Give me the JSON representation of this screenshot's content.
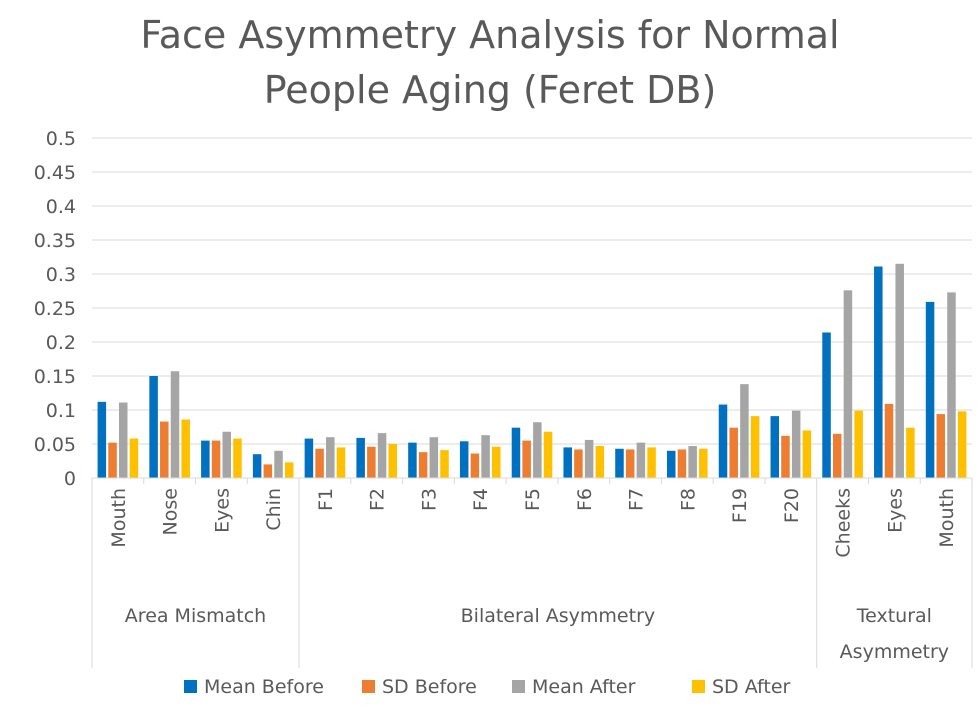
{
  "chart_data": {
    "type": "bar",
    "title_lines": [
      "Face Asymmetry Analysis for Normal",
      "People Aging (Feret DB)"
    ],
    "ylim": [
      0,
      0.5
    ],
    "yticks": [
      "0",
      "0.05",
      "0.1",
      "0.15",
      "0.2",
      "0.25",
      "0.3",
      "0.35",
      "0.4",
      "0.45",
      "0.5"
    ],
    "grid": true,
    "legend_position": "bottom",
    "groups": [
      {
        "label_lines": [
          "Area Mismatch"
        ],
        "categories": [
          "Mouth",
          "Nose",
          "Eyes",
          "Chin"
        ]
      },
      {
        "label_lines": [
          "Bilateral Asymmetry"
        ],
        "categories": [
          "F1",
          "F2",
          "F3",
          "F4",
          "F5",
          "F6",
          "F7",
          "F8",
          "F19",
          "F20"
        ]
      },
      {
        "label_lines": [
          "Textural",
          "Asymmetry"
        ],
        "categories": [
          "Cheeks",
          "Eyes",
          "Mouth"
        ]
      }
    ],
    "series": [
      {
        "name": "Mean Before",
        "color": "#0070C0",
        "values": [
          0.112,
          0.15,
          0.055,
          0.035,
          0.058,
          0.059,
          0.052,
          0.054,
          0.074,
          0.045,
          0.043,
          0.04,
          0.108,
          0.091,
          0.214,
          0.311,
          0.259
        ]
      },
      {
        "name": "SD Before",
        "color": "#ED7D31",
        "values": [
          0.052,
          0.083,
          0.055,
          0.02,
          0.043,
          0.046,
          0.038,
          0.036,
          0.055,
          0.042,
          0.042,
          0.042,
          0.074,
          0.062,
          0.065,
          0.109,
          0.094
        ]
      },
      {
        "name": "Mean After",
        "color": "#A5A5A5",
        "values": [
          0.111,
          0.157,
          0.068,
          0.04,
          0.06,
          0.066,
          0.06,
          0.063,
          0.082,
          0.056,
          0.052,
          0.047,
          0.138,
          0.099,
          0.276,
          0.315,
          0.273
        ]
      },
      {
        "name": "SD After",
        "color": "#FFC000",
        "values": [
          0.058,
          0.086,
          0.058,
          0.023,
          0.045,
          0.05,
          0.041,
          0.046,
          0.068,
          0.047,
          0.045,
          0.043,
          0.091,
          0.07,
          0.099,
          0.074,
          0.098
        ]
      }
    ]
  }
}
